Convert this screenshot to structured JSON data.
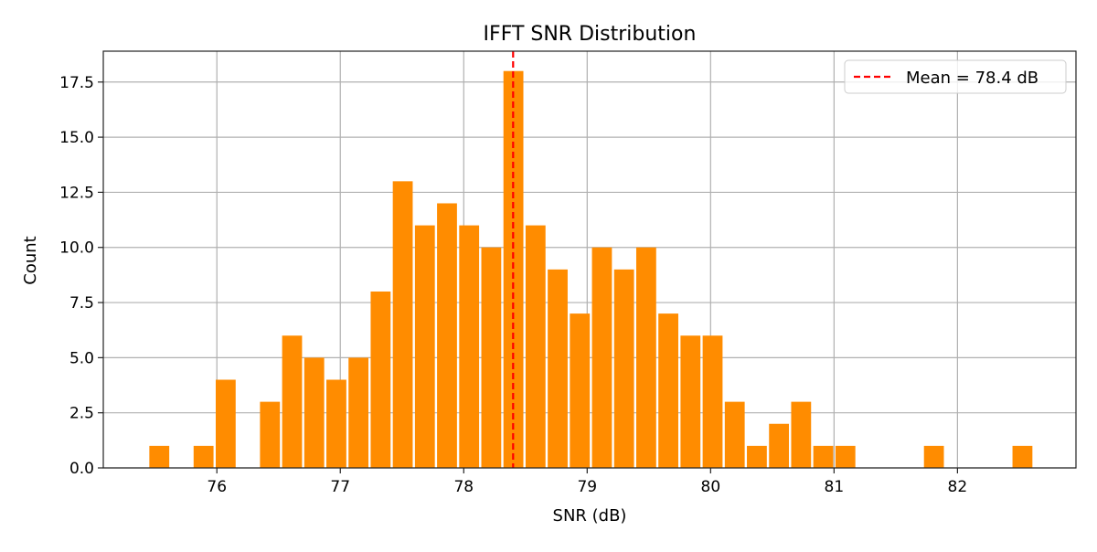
{
  "chart_data": {
    "type": "bar",
    "title": "IFFT SNR Distribution",
    "xlabel": "SNR (dB)",
    "ylabel": "Count",
    "xlim": [
      75.08,
      82.96
    ],
    "ylim": [
      0,
      18.9
    ],
    "grid": true,
    "bar_color": "#ff8c00",
    "bin_start": 75.444,
    "bin_width": 0.1793,
    "counts": [
      1,
      0,
      1,
      4,
      0,
      3,
      6,
      5,
      4,
      5,
      8,
      13,
      11,
      12,
      11,
      10,
      18,
      11,
      9,
      7,
      10,
      9,
      10,
      7,
      6,
      6,
      3,
      1,
      2,
      3,
      1,
      1,
      0,
      0,
      0,
      1,
      0,
      0,
      0,
      1
    ],
    "x_ticks": [
      "76",
      "77",
      "78",
      "79",
      "80",
      "81",
      "82"
    ],
    "y_ticks": [
      "0.0",
      "2.5",
      "5.0",
      "7.5",
      "10.0",
      "12.5",
      "15.0",
      "17.5"
    ],
    "mean_line": {
      "value": 78.4,
      "color": "#ff0000",
      "label": "Mean = 78.4 dB"
    },
    "legend_position": "top-right"
  }
}
